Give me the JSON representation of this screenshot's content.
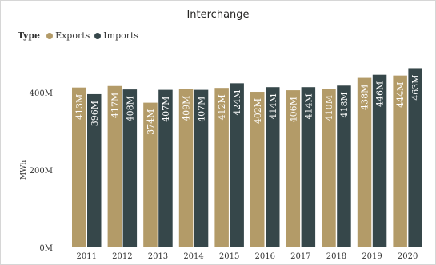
{
  "chart_data": {
    "type": "bar",
    "title": "Interchange",
    "legend_title": "Type",
    "ylabel": "MWh",
    "xlabel": "",
    "ylim": [
      0,
      480
    ],
    "yticks": [
      {
        "value": 0,
        "label": "0M"
      },
      {
        "value": 200,
        "label": "200M"
      },
      {
        "value": 400,
        "label": "400M"
      }
    ],
    "categories": [
      "2011",
      "2012",
      "2013",
      "2014",
      "2015",
      "2016",
      "2017",
      "2018",
      "2019",
      "2020"
    ],
    "series": [
      {
        "name": "Exports",
        "color": "#b39b68",
        "values": [
          413,
          417,
          374,
          409,
          412,
          402,
          406,
          410,
          438,
          444
        ],
        "labels": [
          "413M",
          "417M",
          "374M",
          "409M",
          "412M",
          "402M",
          "406M",
          "410M",
          "438M",
          "444M"
        ]
      },
      {
        "name": "Imports",
        "color": "#36474a",
        "values": [
          396,
          408,
          407,
          407,
          424,
          414,
          414,
          418,
          446,
          463
        ],
        "labels": [
          "396M",
          "408M",
          "407M",
          "407M",
          "424M",
          "414M",
          "414M",
          "418M",
          "446M",
          "463M"
        ]
      }
    ],
    "grid": false,
    "legend_position": "top-left"
  }
}
